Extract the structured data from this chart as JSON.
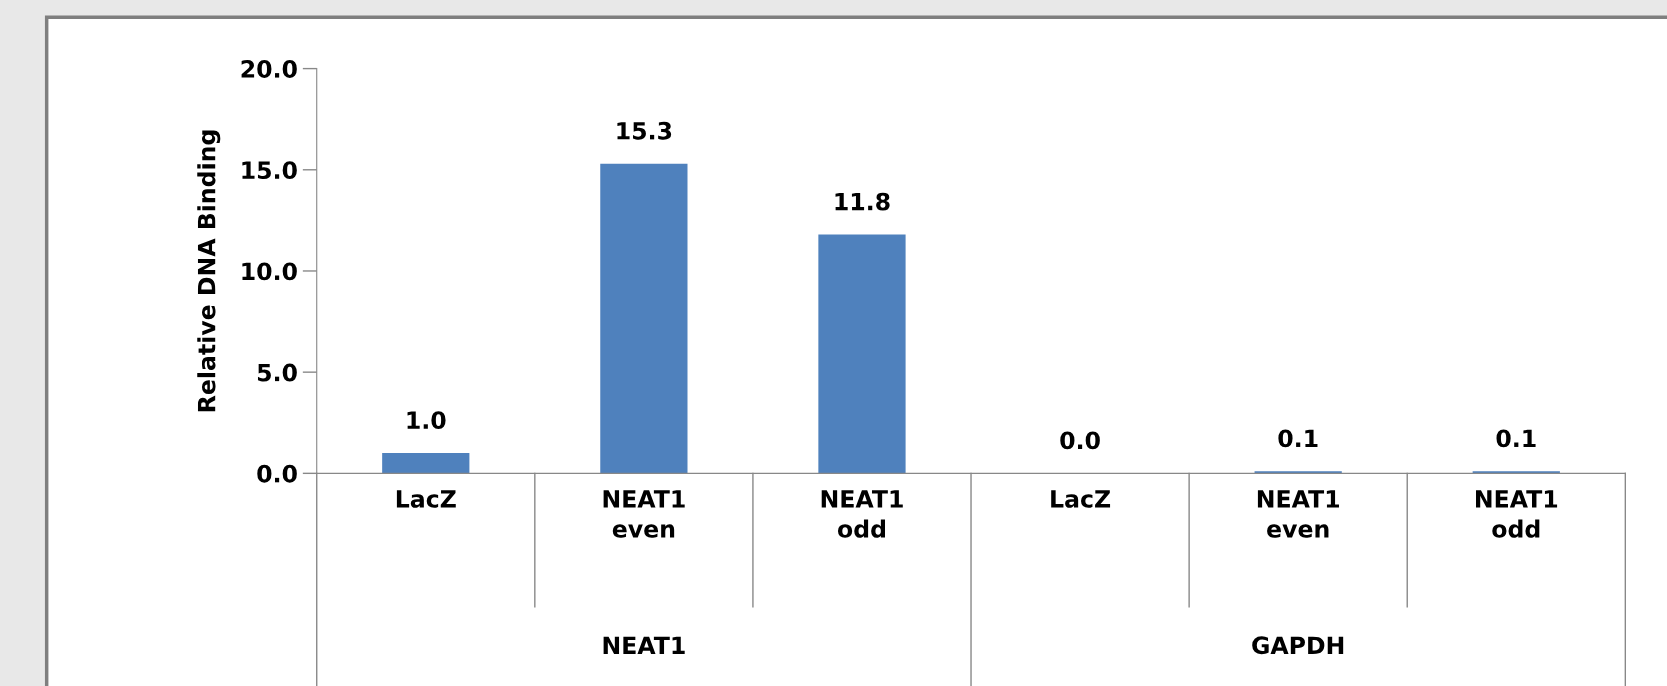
{
  "chart_data": {
    "type": "bar",
    "ylabel": "Relative DNA Binding",
    "categories": [
      "LacZ",
      "NEAT1\neven",
      "NEAT1\nodd",
      "LacZ",
      "NEAT1\neven",
      "NEAT1\nodd"
    ],
    "values": [
      1.0,
      15.3,
      11.8,
      0.0,
      0.1,
      0.1
    ],
    "color": "#4f81bd",
    "annotations": [
      "NEAT1",
      "GAPDH"
    ],
    "ylim": [
      0,
      20
    ],
    "yticks": [
      {
        "value": 0,
        "label": "0.0"
      },
      {
        "value": 5,
        "label": "5.0"
      },
      {
        "value": 10,
        "label": "10.0"
      },
      {
        "value": 15,
        "label": "15.0"
      },
      {
        "value": 20,
        "label": "20.0"
      }
    ],
    "value_labels": [
      "1.0",
      "15.3",
      "11.8",
      "0.0",
      "0.1",
      "0.1"
    ],
    "grid": false,
    "legend": false
  }
}
